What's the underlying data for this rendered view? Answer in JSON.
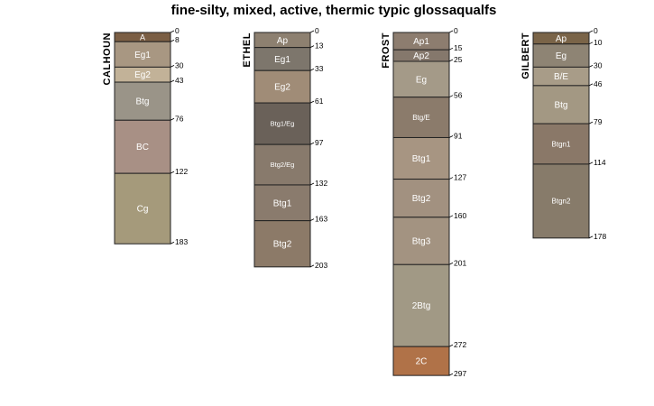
{
  "chart_data": {
    "type": "soil-profile",
    "title": "fine-silty, mixed, active, thermic typic glossaqualfs",
    "depth_units": "cm",
    "profiles": [
      {
        "name": "CALHOUN",
        "horizons": [
          {
            "name": "A",
            "top": 0,
            "bottom": 8,
            "color": "#7b5e44"
          },
          {
            "name": "Eg1",
            "top": 8,
            "bottom": 30,
            "color": "#a89782"
          },
          {
            "name": "Eg2",
            "top": 30,
            "bottom": 43,
            "color": "#c2b298"
          },
          {
            "name": "Btg",
            "top": 43,
            "bottom": 76,
            "color": "#9a9488"
          },
          {
            "name": "BC",
            "top": 76,
            "bottom": 122,
            "color": "#a89085"
          },
          {
            "name": "Cg",
            "top": 122,
            "bottom": 183,
            "color": "#a59a7b"
          }
        ]
      },
      {
        "name": "ETHEL",
        "horizons": [
          {
            "name": "Ap",
            "top": 0,
            "bottom": 13,
            "color": "#8d8070"
          },
          {
            "name": "Eg1",
            "top": 13,
            "bottom": 33,
            "color": "#7d766c"
          },
          {
            "name": "Eg2",
            "top": 33,
            "bottom": 61,
            "color": "#a08c77"
          },
          {
            "name": "Btg1/Eg",
            "top": 61,
            "bottom": 97,
            "color": "#6a6159"
          },
          {
            "name": "Btg2/Eg",
            "top": 97,
            "bottom": 132,
            "color": "#887a6c"
          },
          {
            "name": "Btg1",
            "top": 132,
            "bottom": 163,
            "color": "#8a7b6d"
          },
          {
            "name": "Btg2",
            "top": 163,
            "bottom": 203,
            "color": "#8c7a68"
          }
        ]
      },
      {
        "name": "FROST",
        "horizons": [
          {
            "name": "Ap1",
            "top": 0,
            "bottom": 15,
            "color": "#8d7d6f"
          },
          {
            "name": "Ap2",
            "top": 15,
            "bottom": 25,
            "color": "#85786c"
          },
          {
            "name": "Eg",
            "top": 25,
            "bottom": 56,
            "color": "#a49a88"
          },
          {
            "name": "Btg/E",
            "top": 56,
            "bottom": 91,
            "color": "#8b7b6b"
          },
          {
            "name": "Btg1",
            "top": 91,
            "bottom": 127,
            "color": "#a79582"
          },
          {
            "name": "Btg2",
            "top": 127,
            "bottom": 160,
            "color": "#a29180"
          },
          {
            "name": "Btg3",
            "top": 160,
            "bottom": 201,
            "color": "#a39381"
          },
          {
            "name": "2Btg",
            "top": 201,
            "bottom": 272,
            "color": "#a19985"
          },
          {
            "name": "2C",
            "top": 272,
            "bottom": 297,
            "color": "#b07248"
          }
        ]
      },
      {
        "name": "GILBERT",
        "horizons": [
          {
            "name": "Ap",
            "top": 0,
            "bottom": 10,
            "color": "#7a6448"
          },
          {
            "name": "Eg",
            "top": 10,
            "bottom": 30,
            "color": "#8e8474"
          },
          {
            "name": "B/E",
            "top": 30,
            "bottom": 46,
            "color": "#a89c88"
          },
          {
            "name": "Btg",
            "top": 46,
            "bottom": 79,
            "color": "#a39883"
          },
          {
            "name": "Btgn1",
            "top": 79,
            "bottom": 114,
            "color": "#8a7868"
          },
          {
            "name": "Btgn2",
            "top": 114,
            "bottom": 178,
            "color": "#877b6a"
          }
        ]
      }
    ]
  }
}
